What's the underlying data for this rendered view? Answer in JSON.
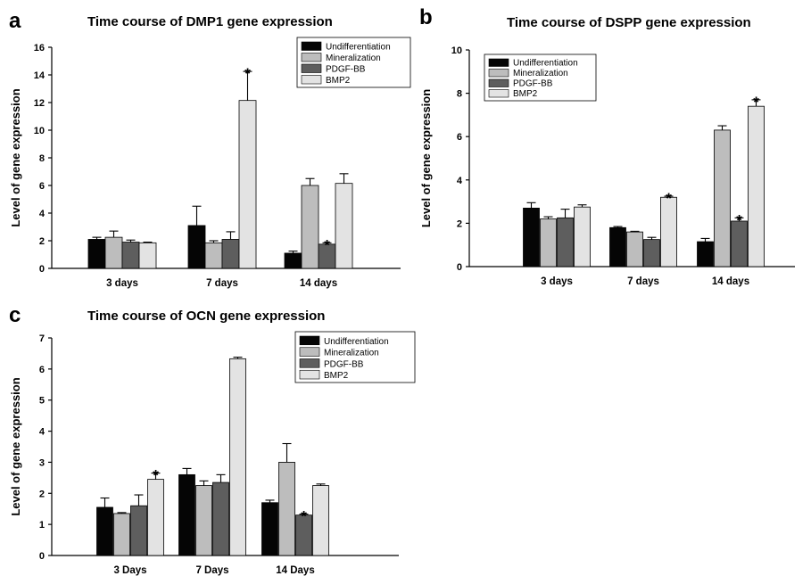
{
  "chart_data": [
    {
      "type": "bar",
      "panel_letter": "a",
      "title": "Time course of DMP1 gene expression",
      "xlabel": "",
      "ylabel": "Level of gene expression",
      "ylim": [
        0,
        16
      ],
      "yticks": [
        0,
        2,
        4,
        6,
        8,
        10,
        12,
        14,
        16
      ],
      "categories": [
        "3 days",
        "7 days",
        "14 days"
      ],
      "legend_position": "top-right",
      "series": [
        {
          "name": "Undifferentiation",
          "color": "#050505",
          "values": [
            2.1,
            3.1,
            1.1
          ],
          "errors": [
            0.15,
            1.4,
            0.15
          ],
          "stars": [
            false,
            false,
            false
          ]
        },
        {
          "name": "Mineralization",
          "color": "#bdbdbd",
          "values": [
            2.25,
            1.85,
            6.0
          ],
          "errors": [
            0.45,
            0.15,
            0.5
          ],
          "stars": [
            false,
            false,
            false
          ]
        },
        {
          "name": "PDGF-BB",
          "color": "#5e5e5e",
          "values": [
            1.9,
            2.1,
            1.75
          ],
          "errors": [
            0.15,
            0.55,
            0.1
          ],
          "stars": [
            false,
            false,
            true
          ]
        },
        {
          "name": "BMP2",
          "color": "#e3e3e3",
          "values": [
            1.85,
            12.15,
            6.15
          ],
          "errors": [
            0.05,
            2.1,
            0.7
          ],
          "stars": [
            false,
            true,
            false
          ]
        }
      ]
    },
    {
      "type": "bar",
      "panel_letter": "b",
      "title": "Time course of DSPP gene expression",
      "xlabel": "",
      "ylabel": "Level of gene expression",
      "ylim": [
        0,
        10
      ],
      "yticks": [
        0,
        2,
        4,
        6,
        8,
        10
      ],
      "categories": [
        "3 days",
        "7 days",
        "14 days"
      ],
      "legend_position": "top-left",
      "series": [
        {
          "name": "Undifferentiation",
          "color": "#050505",
          "values": [
            2.7,
            1.8,
            1.15
          ],
          "errors": [
            0.25,
            0.05,
            0.15
          ],
          "stars": [
            false,
            false,
            false
          ]
        },
        {
          "name": "Mineralization",
          "color": "#bdbdbd",
          "values": [
            2.2,
            1.6,
            6.3
          ],
          "errors": [
            0.1,
            0.03,
            0.2
          ],
          "stars": [
            false,
            false,
            false
          ]
        },
        {
          "name": "PDGF-BB",
          "color": "#5e5e5e",
          "values": [
            2.25,
            1.25,
            2.1
          ],
          "errors": [
            0.4,
            0.1,
            0.15
          ],
          "stars": [
            false,
            false,
            true
          ]
        },
        {
          "name": "BMP2",
          "color": "#e3e3e3",
          "values": [
            2.75,
            3.2,
            7.4
          ],
          "errors": [
            0.1,
            0.05,
            0.3
          ],
          "stars": [
            false,
            true,
            true
          ]
        }
      ]
    },
    {
      "type": "bar",
      "panel_letter": "c",
      "title": "Time course of OCN gene expression",
      "xlabel": "",
      "ylabel": "Level of gene expression",
      "ylim": [
        0,
        7
      ],
      "yticks": [
        0,
        1,
        2,
        3,
        4,
        5,
        6,
        7
      ],
      "categories": [
        "3 Days",
        "7 Days",
        "14 Days"
      ],
      "legend_position": "top-right",
      "series": [
        {
          "name": "Undifferentiation",
          "color": "#050505",
          "values": [
            1.55,
            2.6,
            1.7
          ],
          "errors": [
            0.3,
            0.2,
            0.08
          ],
          "stars": [
            false,
            false,
            false
          ]
        },
        {
          "name": "Mineralization",
          "color": "#bdbdbd",
          "values": [
            1.35,
            2.25,
            3.0
          ],
          "errors": [
            0.03,
            0.15,
            0.6
          ],
          "stars": [
            false,
            false,
            false
          ]
        },
        {
          "name": "PDGF-BB",
          "color": "#5e5e5e",
          "values": [
            1.6,
            2.35,
            1.3
          ],
          "errors": [
            0.35,
            0.25,
            0.03
          ],
          "stars": [
            false,
            false,
            true
          ]
        },
        {
          "name": "BMP2",
          "color": "#e3e3e3",
          "values": [
            2.45,
            6.33,
            2.25
          ],
          "errors": [
            0.2,
            0.05,
            0.05
          ],
          "stars": [
            true,
            false,
            false
          ]
        }
      ]
    }
  ]
}
